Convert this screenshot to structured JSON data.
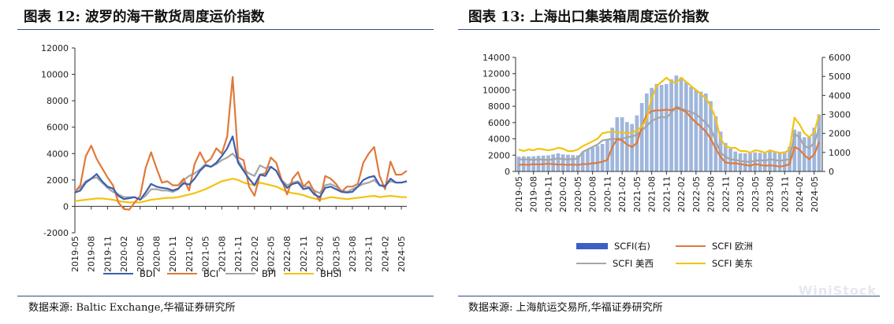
{
  "left": {
    "title": "图表 12:  波罗的海干散货周度运价指数",
    "source": "数据来源:  Baltic Exchange,华福证券研究所",
    "legend": [
      "BDI",
      "BCI",
      "BPI",
      "BHSI"
    ]
  },
  "right": {
    "title": "图表 13:  上海出口集装箱周度运价指数",
    "source": "数据来源:  上海航运交易所,华福证券研究所",
    "legend": [
      "SCFI(右)",
      "SCFI 欧洲",
      "SCFI 美西",
      "SCFI 美东"
    ]
  },
  "watermark": "WiniStock",
  "colors": {
    "bdi": "#3b5fb0",
    "bci": "#e0793a",
    "bpi": "#a5a5a5",
    "bhsi": "#f2c311",
    "scfi_bar": "#8ea9d6",
    "scfi_eu": "#e0793a",
    "scfi_usw": "#a5a5a5",
    "scfi_use": "#f2c311",
    "rule": "#2f4e7f"
  },
  "chart_data": [
    {
      "type": "line",
      "title": "图表 12:  波罗的海干散货周度运价指数",
      "ylim": [
        -2000,
        12000
      ],
      "yticks": [
        -2000,
        0,
        2000,
        4000,
        6000,
        8000,
        10000,
        12000
      ],
      "xlabels": [
        "2019-05",
        "2019-08",
        "2019-11",
        "2020-02",
        "2020-05",
        "2020-08",
        "2020-11",
        "2021-02",
        "2021-05",
        "2021-08",
        "2021-11",
        "2022-02",
        "2022-05",
        "2022-08",
        "2022-11",
        "2023-02",
        "2023-05",
        "2023-08",
        "2023-11",
        "2024-02",
        "2024-05"
      ],
      "x": [
        "2019-05",
        "2019-06",
        "2019-07",
        "2019-08",
        "2019-09",
        "2019-10",
        "2019-11",
        "2019-12",
        "2020-01",
        "2020-02",
        "2020-03",
        "2020-04",
        "2020-05",
        "2020-06",
        "2020-07",
        "2020-08",
        "2020-09",
        "2020-10",
        "2020-11",
        "2020-12",
        "2021-01",
        "2021-02",
        "2021-03",
        "2021-04",
        "2021-05",
        "2021-06",
        "2021-07",
        "2021-08",
        "2021-09",
        "2021-10",
        "2021-11",
        "2021-12",
        "2022-01",
        "2022-02",
        "2022-03",
        "2022-04",
        "2022-05",
        "2022-06",
        "2022-07",
        "2022-08",
        "2022-09",
        "2022-10",
        "2022-11",
        "2022-12",
        "2023-01",
        "2023-02",
        "2023-03",
        "2023-04",
        "2023-05",
        "2023-06",
        "2023-07",
        "2023-08",
        "2023-09",
        "2023-10",
        "2023-11",
        "2023-12",
        "2024-01",
        "2024-02",
        "2024-03",
        "2024-04",
        "2024-05",
        "2024-06"
      ],
      "series": [
        {
          "name": "BDI",
          "values": [
            1050,
            1200,
            1800,
            2100,
            2450,
            1900,
            1500,
            1350,
            800,
            550,
            620,
            700,
            500,
            1050,
            1700,
            1500,
            1400,
            1350,
            1200,
            1350,
            1750,
            1650,
            2100,
            2700,
            3100,
            3000,
            3300,
            3800,
            4400,
            5300,
            3300,
            2700,
            2100,
            1600,
            2400,
            2300,
            3000,
            2700,
            1900,
            1400,
            1700,
            1800,
            1300,
            1400,
            900,
            700,
            1400,
            1500,
            1300,
            1100,
            1050,
            1100,
            1500,
            2000,
            2200,
            2300,
            1600,
            1500,
            2100,
            1800,
            1800,
            1900
          ]
        },
        {
          "name": "BCI",
          "values": [
            1100,
            1600,
            3800,
            4600,
            3600,
            2900,
            2200,
            1600,
            300,
            -200,
            -250,
            300,
            800,
            2900,
            4100,
            2900,
            1800,
            1900,
            1600,
            1600,
            2100,
            1200,
            3200,
            4100,
            3300,
            3600,
            4400,
            4000,
            5300,
            9800,
            3700,
            3500,
            1500,
            800,
            2400,
            2500,
            3700,
            3300,
            2000,
            900,
            2100,
            2600,
            1500,
            1900,
            1100,
            400,
            2300,
            2100,
            1700,
            1100,
            1500,
            1500,
            1700,
            3300,
            4000,
            4500,
            2300,
            1300,
            3400,
            2400,
            2400,
            2700
          ]
        },
        {
          "name": "BPI",
          "values": [
            1200,
            1400,
            1900,
            2100,
            2200,
            1800,
            1400,
            1100,
            900,
            700,
            700,
            700,
            500,
            800,
            1300,
            1300,
            1200,
            1200,
            1100,
            1300,
            2000,
            2300,
            2500,
            2800,
            3200,
            3000,
            3200,
            3500,
            3700,
            4000,
            3500,
            2800,
            2500,
            2300,
            3100,
            2900,
            3000,
            2700,
            2000,
            1600,
            1800,
            1900,
            1500,
            1500,
            1200,
            1000,
            1600,
            1700,
            1500,
            1200,
            1100,
            1300,
            1500,
            1700,
            1800,
            2000,
            1600,
            1600,
            1900,
            1800,
            1800,
            1900
          ]
        },
        {
          "name": "BHSI",
          "values": [
            400,
            450,
            500,
            550,
            600,
            600,
            550,
            500,
            400,
            350,
            300,
            300,
            300,
            400,
            500,
            550,
            600,
            650,
            650,
            700,
            800,
            900,
            1000,
            1150,
            1300,
            1500,
            1700,
            1900,
            2000,
            2100,
            2000,
            1800,
            1700,
            1600,
            1800,
            1700,
            1600,
            1500,
            1300,
            1100,
            1000,
            950,
            850,
            700,
            600,
            500,
            600,
            700,
            650,
            600,
            550,
            600,
            650,
            700,
            750,
            800,
            700,
            750,
            800,
            750,
            700,
            700
          ]
        }
      ]
    },
    {
      "type": "bar+line",
      "title": "图表 13:  上海出口集装箱周度运价指数",
      "ylim": [
        0,
        14000
      ],
      "y2lim": [
        0,
        6000
      ],
      "yticks": [
        0,
        2000,
        4000,
        6000,
        8000,
        10000,
        12000,
        14000
      ],
      "y2ticks": [
        0,
        1000,
        2000,
        3000,
        4000,
        5000,
        6000
      ],
      "xlabels": [
        "2019-05",
        "2019-08",
        "2019-11",
        "2020-02",
        "2020-05",
        "2020-08",
        "2020-11",
        "2021-02",
        "2021-05",
        "2021-08",
        "2021-11",
        "2022-02",
        "2022-05",
        "2022-08",
        "2022-11",
        "2023-02",
        "2023-05",
        "2023-08",
        "2023-11",
        "2024-02",
        "2024-05"
      ],
      "x": [
        "2019-05",
        "2019-06",
        "2019-07",
        "2019-08",
        "2019-09",
        "2019-10",
        "2019-11",
        "2019-12",
        "2020-01",
        "2020-02",
        "2020-03",
        "2020-04",
        "2020-05",
        "2020-06",
        "2020-07",
        "2020-08",
        "2020-09",
        "2020-10",
        "2020-11",
        "2020-12",
        "2021-01",
        "2021-02",
        "2021-03",
        "2021-04",
        "2021-05",
        "2021-06",
        "2021-07",
        "2021-08",
        "2021-09",
        "2021-10",
        "2021-11",
        "2021-12",
        "2022-01",
        "2022-02",
        "2022-03",
        "2022-04",
        "2022-05",
        "2022-06",
        "2022-07",
        "2022-08",
        "2022-09",
        "2022-10",
        "2022-11",
        "2022-12",
        "2023-01",
        "2023-02",
        "2023-03",
        "2023-04",
        "2023-05",
        "2023-06",
        "2023-07",
        "2023-08",
        "2023-09",
        "2023-10",
        "2023-11",
        "2023-12",
        "2024-01",
        "2024-02",
        "2024-03",
        "2024-04",
        "2024-05",
        "2024-06"
      ],
      "series": [
        {
          "name": "SCFI(右)",
          "axis": "right",
          "type": "bar",
          "values": [
            780,
            800,
            790,
            800,
            820,
            830,
            850,
            900,
            950,
            900,
            880,
            860,
            850,
            1000,
            1150,
            1250,
            1350,
            1450,
            1700,
            2300,
            2850,
            2850,
            2600,
            2500,
            2950,
            3600,
            4100,
            4400,
            4600,
            4550,
            4600,
            4850,
            5050,
            4950,
            4700,
            4450,
            4300,
            4200,
            4100,
            3700,
            2900,
            2100,
            1500,
            1200,
            1050,
            950,
            950,
            950,
            1000,
            980,
            950,
            1050,
            1000,
            950,
            1050,
            1300,
            2200,
            2100,
            1800,
            1800,
            2300,
            3000
          ]
        },
        {
          "name": "SCFI 欧洲",
          "axis": "left",
          "type": "line",
          "values": [
            800,
            850,
            800,
            900,
            850,
            900,
            950,
            900,
            850,
            850,
            800,
            850,
            800,
            900,
            900,
            1000,
            1050,
            1200,
            1400,
            3000,
            4000,
            3800,
            3300,
            3000,
            3500,
            5500,
            7000,
            7400,
            7500,
            7500,
            7600,
            7500,
            7800,
            7600,
            7300,
            6600,
            6000,
            5500,
            4900,
            4000,
            2800,
            1800,
            1100,
            1000,
            1000,
            900,
            800,
            700,
            900,
            800,
            700,
            750,
            700,
            600,
            700,
            900,
            3000,
            2700,
            2000,
            1500,
            2100,
            3600
          ]
        },
        {
          "name": "SCFI 美西",
          "axis": "left",
          "type": "line",
          "values": [
            1500,
            1450,
            1500,
            1400,
            1500,
            1450,
            1400,
            1500,
            1600,
            1500,
            1500,
            1500,
            1600,
            2400,
            2700,
            3000,
            3300,
            3800,
            3900,
            4000,
            4000,
            4000,
            4200,
            4300,
            4500,
            5000,
            5600,
            6200,
            6500,
            6700,
            6600,
            7200,
            8000,
            7700,
            7500,
            7300,
            7000,
            6500,
            6000,
            5200,
            3800,
            2300,
            1800,
            1500,
            1400,
            1300,
            1200,
            1200,
            1300,
            1400,
            1300,
            1500,
            1400,
            1300,
            1400,
            1500,
            4600,
            4200,
            3100,
            2900,
            3500,
            5300
          ]
        },
        {
          "name": "SCFI 美东",
          "axis": "left",
          "type": "line",
          "values": [
            2700,
            2500,
            2700,
            2600,
            2800,
            2700,
            2600,
            2700,
            2900,
            2800,
            2500,
            2500,
            2700,
            3100,
            3400,
            3700,
            4000,
            4700,
            4800,
            4900,
            4800,
            4800,
            4700,
            4800,
            5000,
            5500,
            6500,
            9000,
            10500,
            11000,
            11500,
            11000,
            10900,
            11500,
            11000,
            10500,
            10000,
            9500,
            9000,
            8000,
            6500,
            4000,
            3100,
            2900,
            2900,
            2500,
            2500,
            2300,
            2600,
            2500,
            2300,
            2600,
            2400,
            2300,
            2300,
            2700,
            6600,
            5800,
            4700,
            4200,
            4800,
            7000
          ]
        }
      ]
    }
  ]
}
